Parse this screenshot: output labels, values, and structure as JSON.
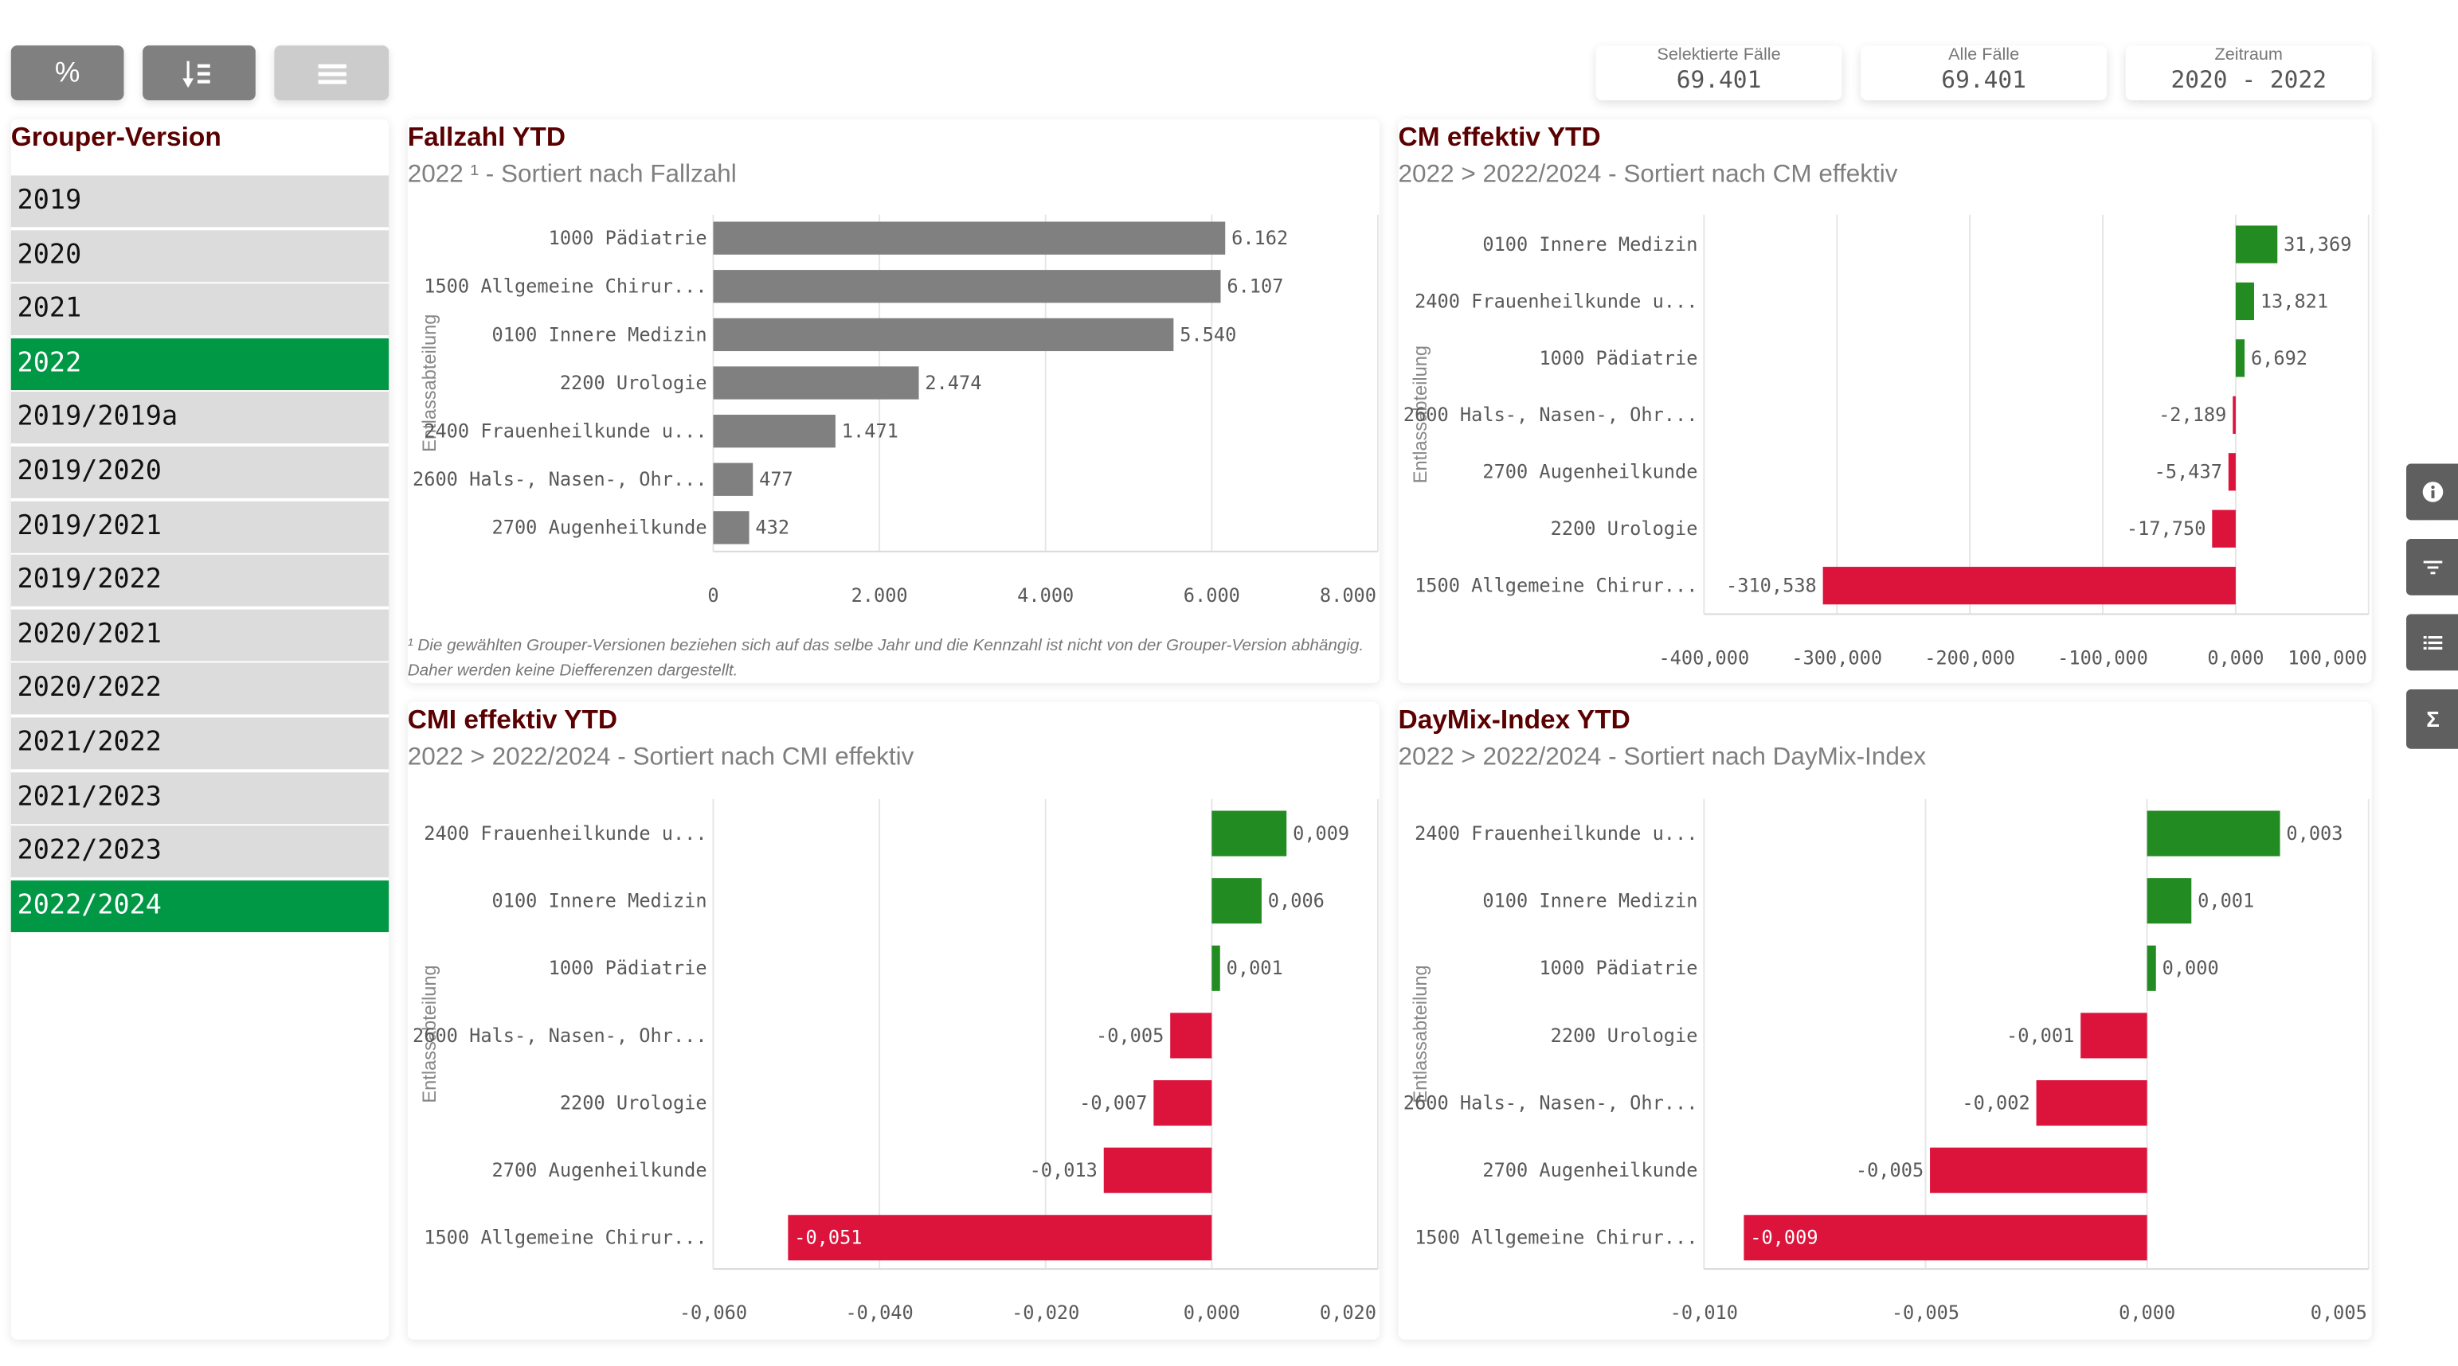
{
  "toolbar": {
    "buttons": [
      {
        "label": "%",
        "icon": "percent-icon",
        "color": "#808080"
      },
      {
        "label": "",
        "icon": "sort-descending-icon",
        "color": "#808080"
      },
      {
        "label": "",
        "icon": "menu-lines-icon",
        "color": "#cccccc"
      }
    ]
  },
  "kpis": [
    {
      "label": "Selektierte Fälle",
      "value": "69.401"
    },
    {
      "label": "Alle Fälle",
      "value": "69.401"
    },
    {
      "label": "Zeitraum",
      "value": "2020 - 2022"
    }
  ],
  "grouper": {
    "title": "Grouper-Version",
    "items": [
      {
        "label": "2019",
        "selected": false
      },
      {
        "label": "2020",
        "selected": false
      },
      {
        "label": "2021",
        "selected": false
      },
      {
        "label": "2022",
        "selected": true
      },
      {
        "label": "2019/2019a",
        "selected": false
      },
      {
        "label": "2019/2020",
        "selected": false
      },
      {
        "label": "2019/2021",
        "selected": false
      },
      {
        "label": "2019/2022",
        "selected": false
      },
      {
        "label": "2020/2021",
        "selected": false
      },
      {
        "label": "2020/2022",
        "selected": false
      },
      {
        "label": "2021/2022",
        "selected": false
      },
      {
        "label": "2021/2023",
        "selected": false
      },
      {
        "label": "2022/2023",
        "selected": false
      },
      {
        "label": "2022/2024",
        "selected": true
      }
    ]
  },
  "side_buttons": [
    {
      "icon": "info-icon"
    },
    {
      "icon": "filter-icon"
    },
    {
      "icon": "list-icon"
    },
    {
      "icon": "sigma-icon"
    }
  ],
  "colors": {
    "accent_green": "#009845",
    "title": "#5a0000",
    "positive": "#228b22",
    "negative": "#dc143c",
    "neutral_bar": "#808080"
  },
  "footnote": "¹ Die gewählten Grouper-Versionen beziehen sich auf das selbe Jahr und die Kennzahl ist nicht von der Grouper-Version abhängig. Daher werden keine Diefferenzen dargestellt.",
  "chart_data": [
    {
      "type": "bar",
      "orientation": "horizontal",
      "title": "Fallzahl YTD",
      "subtitle": "2022 ¹ - Sortiert nach Fallzahl",
      "ylabel": "Entlassabteilung",
      "categories": [
        "1000 Pädiatrie",
        "1500 Allgemeine Chirur...",
        "0100 Innere Medizin",
        "2200 Urologie",
        "2400 Frauenheilkunde u...",
        "2600 Hals-, Nasen-, Ohr...",
        "2700 Augenheilkunde"
      ],
      "values": [
        6162,
        6107,
        5540,
        2474,
        1471,
        477,
        432
      ],
      "value_labels": [
        "6.162",
        "6.107",
        "5.540",
        "2.474",
        "1.471",
        "477",
        "432"
      ],
      "xlim": [
        0,
        8000
      ],
      "ticks": [
        0,
        2000,
        4000,
        6000,
        8000
      ],
      "tick_labels": [
        "0",
        "2.000",
        "4.000",
        "6.000",
        "8.000"
      ],
      "grid": true
    },
    {
      "type": "bar",
      "orientation": "horizontal",
      "title": "CM effektiv YTD",
      "subtitle": "2022 > 2022/2024 - Sortiert nach CM effektiv",
      "ylabel": "Entlassabteilung",
      "categories": [
        "0100 Innere Medizin",
        "2400 Frauenheilkunde u...",
        "1000 Pädiatrie",
        "2600 Hals-, Nasen-, Ohr...",
        "2700 Augenheilkunde",
        "2200 Urologie",
        "1500 Allgemeine Chirur..."
      ],
      "values": [
        31.369,
        13.821,
        6.692,
        -2.189,
        -5.437,
        -17.75,
        -310.538
      ],
      "value_labels": [
        "31,369",
        "13,821",
        "6,692",
        "-2,189",
        "-5,437",
        "-17,750",
        "-310,538"
      ],
      "xlim": [
        -400,
        100
      ],
      "ticks": [
        -400,
        -300,
        -200,
        -100,
        0,
        100
      ],
      "tick_labels": [
        "-400,000",
        "-300,000",
        "-200,000",
        "-100,000",
        "0,000",
        "100,000"
      ],
      "grid": true
    },
    {
      "type": "bar",
      "orientation": "horizontal",
      "title": "CMI effektiv YTD",
      "subtitle": "2022 > 2022/2024 - Sortiert nach CMI effektiv",
      "ylabel": "Entlassabteilung",
      "categories": [
        "2400 Frauenheilkunde u...",
        "0100 Innere Medizin",
        "1000 Pädiatrie",
        "2600 Hals-, Nasen-, Ohr...",
        "2200 Urologie",
        "2700 Augenheilkunde",
        "1500 Allgemeine Chirur..."
      ],
      "values": [
        0.009,
        0.006,
        0.001,
        -0.005,
        -0.007,
        -0.013,
        -0.051
      ],
      "value_labels": [
        "0,009",
        "0,006",
        "0,001",
        "-0,005",
        "-0,007",
        "-0,013",
        "-0,051"
      ],
      "xlim": [
        -0.06,
        0.02
      ],
      "ticks": [
        -0.06,
        -0.04,
        -0.02,
        0,
        0.02
      ],
      "tick_labels": [
        "-0,060",
        "-0,040",
        "-0,020",
        "0,000",
        "0,020"
      ],
      "grid": true
    },
    {
      "type": "bar",
      "orientation": "horizontal",
      "title": "DayMix-Index YTD",
      "subtitle": "2022 > 2022/2024 - Sortiert nach DayMix-Index",
      "ylabel": "Entlassabteilung",
      "categories": [
        "2400 Frauenheilkunde u...",
        "0100 Innere Medizin",
        "1000 Pädiatrie",
        "2200 Urologie",
        "2600 Hals-, Nasen-, Ohr...",
        "2700 Augenheilkunde",
        "1500 Allgemeine Chirur..."
      ],
      "values": [
        0.003,
        0.001,
        0.0002,
        -0.0015,
        -0.0025,
        -0.0049,
        -0.0091
      ],
      "value_labels": [
        "0,003",
        "0,001",
        "0,000",
        "-0,001",
        "-0,002",
        "-0,005",
        "-0,009"
      ],
      "xlim": [
        -0.01,
        0.005
      ],
      "ticks": [
        -0.01,
        -0.005,
        0,
        0.005
      ],
      "tick_labels": [
        "-0,010",
        "-0,005",
        "0,000",
        "0,005"
      ],
      "grid": true
    }
  ]
}
